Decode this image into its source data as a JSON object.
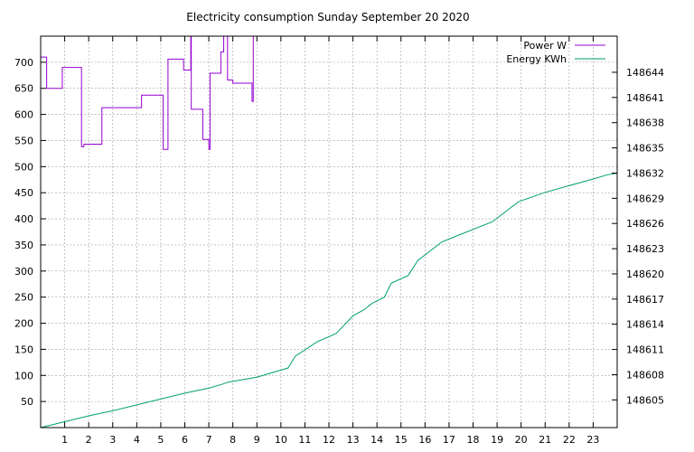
{
  "chart_data": {
    "type": "line",
    "title": "Electricity consumption Sunday September 20 2020",
    "legend_position": "top-right",
    "grid": true,
    "x": {
      "range": [
        0,
        24
      ],
      "ticks": [
        1,
        2,
        3,
        4,
        5,
        6,
        7,
        8,
        9,
        10,
        11,
        12,
        13,
        14,
        15,
        16,
        17,
        18,
        19,
        20,
        21,
        22,
        23
      ]
    },
    "y_left": {
      "range": [
        0,
        750
      ],
      "ticks": [
        50,
        100,
        150,
        200,
        250,
        300,
        350,
        400,
        450,
        500,
        550,
        600,
        650,
        700
      ]
    },
    "y_right": {
      "range": [
        148601.7,
        148648.3
      ],
      "ticks": [
        148605,
        148608,
        148611,
        148614,
        148617,
        148620,
        148623,
        148626,
        148629,
        148632,
        148635,
        148638,
        148641,
        148644
      ]
    },
    "series": [
      {
        "name": "Power W",
        "color": "#9400d3",
        "axis": "left",
        "step": true,
        "points": [
          [
            0.0,
            710
          ],
          [
            0.25,
            650
          ],
          [
            0.9,
            690
          ],
          [
            1.7,
            538
          ],
          [
            1.8,
            543
          ],
          [
            2.55,
            613
          ],
          [
            4.2,
            637
          ],
          [
            5.1,
            533
          ],
          [
            5.3,
            706
          ],
          [
            5.95,
            685
          ],
          [
            6.25,
            750
          ],
          [
            6.27,
            610
          ],
          [
            6.75,
            552
          ],
          [
            7.0,
            533
          ],
          [
            7.05,
            679
          ],
          [
            7.5,
            720
          ],
          [
            7.62,
            750
          ],
          [
            7.78,
            666
          ],
          [
            8.0,
            660
          ],
          [
            8.8,
            625
          ],
          [
            8.85,
            750
          ]
        ]
      },
      {
        "name": "Energy KWh",
        "color": "#009e73",
        "axis": "right",
        "step": false,
        "points": [
          [
            0.0,
            148601.7
          ],
          [
            1.0,
            148602.4
          ],
          [
            2.0,
            148603.1
          ],
          [
            3.0,
            148603.7
          ],
          [
            4.0,
            148604.4
          ],
          [
            5.0,
            148605.1
          ],
          [
            6.0,
            148605.8
          ],
          [
            7.0,
            148606.4
          ],
          [
            7.6,
            148606.9
          ],
          [
            7.8,
            148607.1
          ],
          [
            9.0,
            148607.7
          ],
          [
            10.3,
            148608.8
          ],
          [
            10.6,
            148610.2
          ],
          [
            11.5,
            148611.9
          ],
          [
            12.3,
            148612.9
          ],
          [
            13.0,
            148615.0
          ],
          [
            13.5,
            148615.8
          ],
          [
            13.8,
            148616.5
          ],
          [
            14.3,
            148617.2
          ],
          [
            14.6,
            148618.9
          ],
          [
            15.3,
            148619.8
          ],
          [
            15.7,
            148621.6
          ],
          [
            16.7,
            148623.8
          ],
          [
            17.3,
            148624.5
          ],
          [
            18.8,
            148626.2
          ],
          [
            19.9,
            148628.6
          ],
          [
            21.0,
            148629.7
          ],
          [
            22.0,
            148630.5
          ],
          [
            23.0,
            148631.3
          ],
          [
            23.6,
            148631.8
          ],
          [
            24.0,
            148632.0
          ]
        ]
      }
    ]
  }
}
